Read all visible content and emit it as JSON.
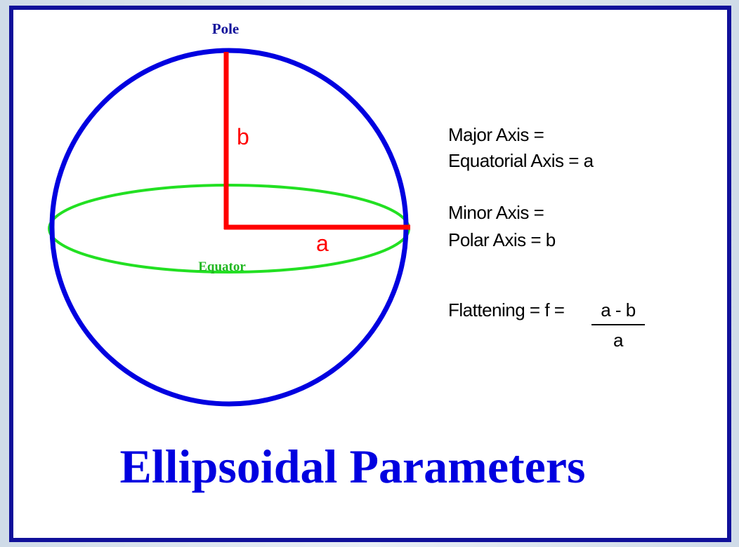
{
  "diagram": {
    "pole_label": "Pole",
    "b_label": "b",
    "a_label": "a",
    "equator_label": "Equator",
    "definitions": {
      "major_line1": "Major Axis =",
      "major_line2": "Equatorial Axis = a",
      "minor_line1": "Minor Axis =",
      "minor_line2": "Polar Axis = b",
      "flattening_prefix": "Flattening = f =",
      "flattening_numerator": "a - b",
      "flattening_denominator": "a"
    },
    "title": "Ellipsoidal Parameters"
  }
}
